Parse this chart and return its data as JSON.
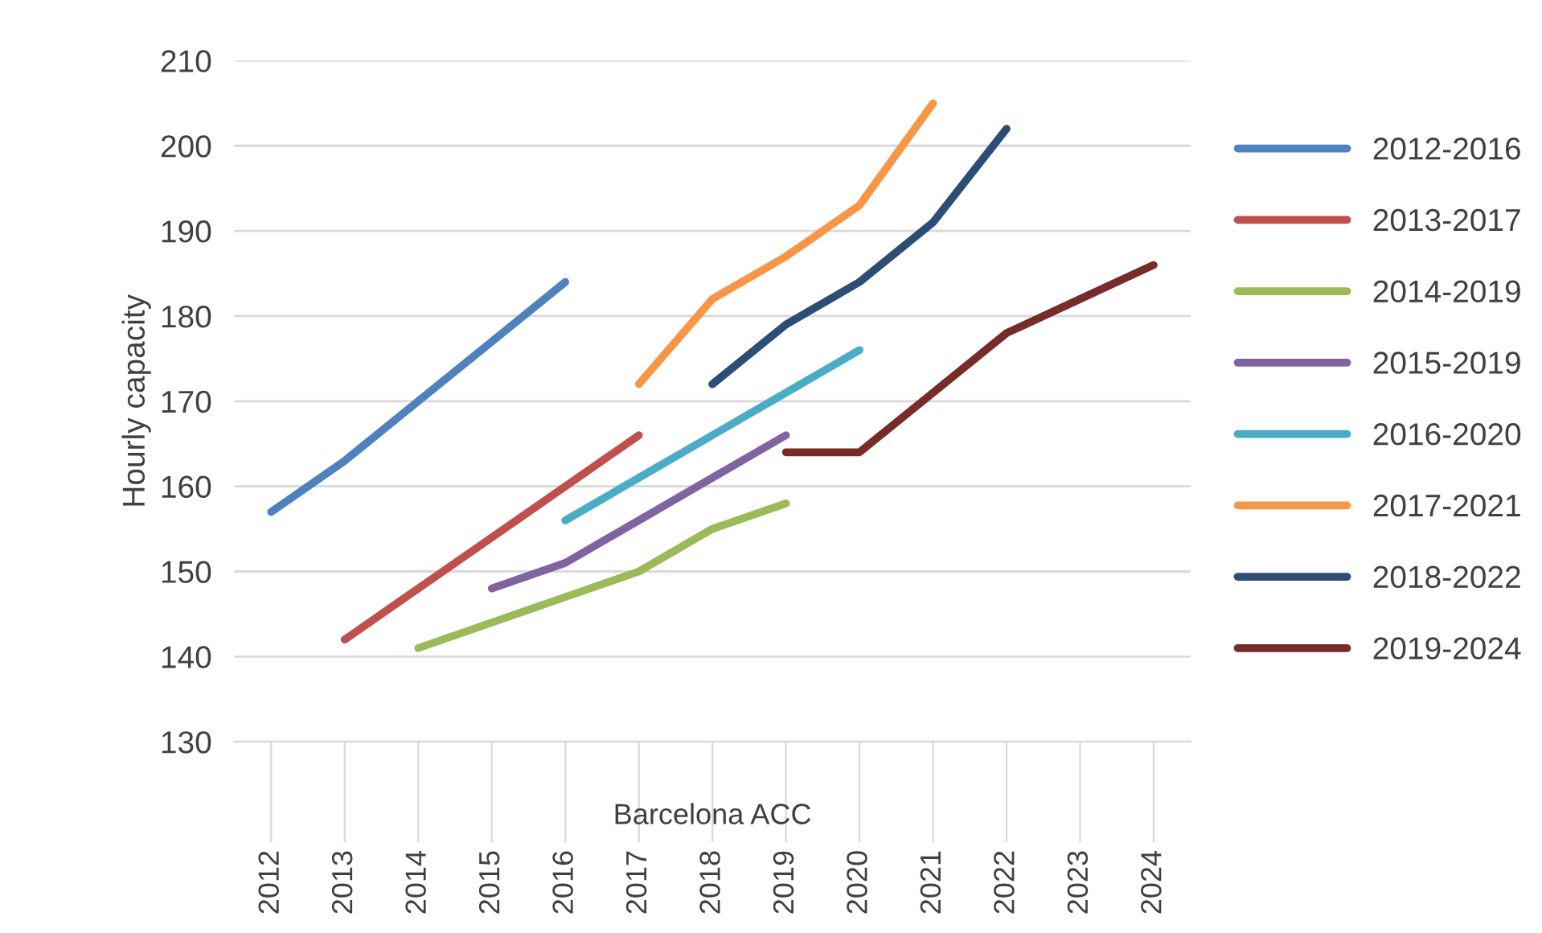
{
  "chart_data": {
    "type": "line",
    "ylabel": "Hourly capacity",
    "xlabel": "Barcelona ACC",
    "categories": [
      "2012",
      "2013",
      "2014",
      "2015",
      "2016",
      "2017",
      "2018",
      "2019",
      "2020",
      "2021",
      "2022",
      "2023",
      "2024"
    ],
    "ylim": [
      130,
      210
    ],
    "yticks": [
      130,
      140,
      150,
      160,
      170,
      180,
      190,
      200,
      210
    ],
    "grid": "y",
    "legend": "right",
    "marker": "none",
    "line_style": "solid",
    "series": [
      {
        "name": "2012-2016",
        "color": "#4f81bd",
        "values": [
          157,
          163,
          170,
          177,
          184,
          null,
          null,
          null,
          null,
          null,
          null,
          null,
          null
        ]
      },
      {
        "name": "2013-2017",
        "color": "#c0504d",
        "values": [
          null,
          142,
          148,
          154,
          160,
          166,
          null,
          null,
          null,
          null,
          null,
          null,
          null
        ]
      },
      {
        "name": "2014-2019",
        "color": "#9bbb59",
        "values": [
          null,
          null,
          141,
          144,
          147,
          150,
          155,
          158,
          null,
          null,
          null,
          null,
          null
        ]
      },
      {
        "name": "2015-2019",
        "color": "#8064a2",
        "values": [
          null,
          null,
          null,
          148,
          151,
          156,
          161,
          166,
          null,
          null,
          null,
          null,
          null
        ]
      },
      {
        "name": "2016-2020",
        "color": "#4bacc6",
        "values": [
          null,
          null,
          null,
          null,
          156,
          161,
          166,
          171,
          176,
          null,
          null,
          null,
          null
        ]
      },
      {
        "name": "2017-2021",
        "color": "#f79646",
        "values": [
          null,
          null,
          null,
          null,
          null,
          172,
          182,
          187,
          193,
          205,
          null,
          null,
          null
        ]
      },
      {
        "name": "2018-2022",
        "color": "#2c4d75",
        "values": [
          null,
          null,
          null,
          null,
          null,
          null,
          172,
          179,
          184,
          191,
          202,
          null,
          null
        ]
      },
      {
        "name": "2019-2024",
        "color": "#772c2a",
        "values": [
          null,
          null,
          null,
          null,
          null,
          null,
          null,
          164,
          164,
          171,
          178,
          182,
          186
        ]
      }
    ]
  }
}
